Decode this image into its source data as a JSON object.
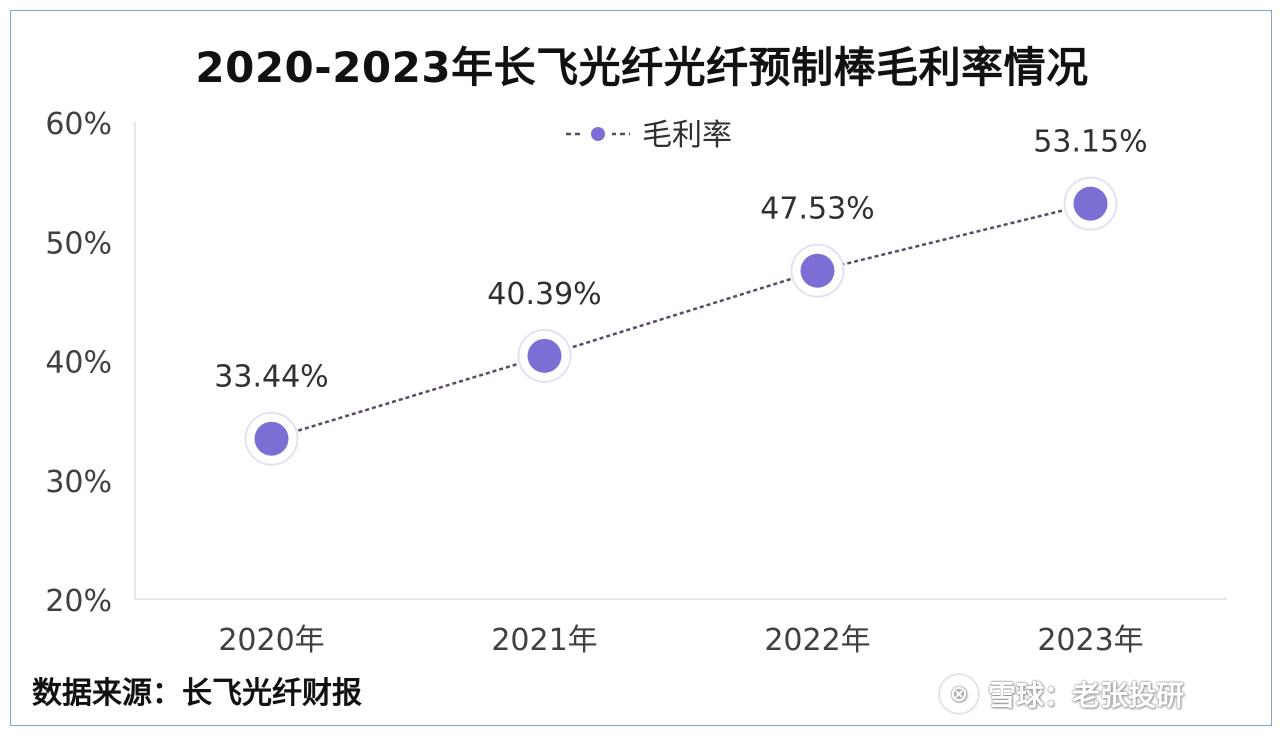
{
  "chart_data": {
    "type": "line",
    "title": "2020-2023年长飞光纤光纤预制棒毛利率情况",
    "categories": [
      "2020年",
      "2021年",
      "2022年",
      "2023年"
    ],
    "series": [
      {
        "name": "毛利率",
        "values": [
          33.44,
          40.39,
          47.53,
          53.15
        ],
        "data_labels": [
          "33.44%",
          "40.39%",
          "47.53%",
          "53.15%"
        ]
      }
    ],
    "ylim": [
      20,
      60
    ],
    "yticks": [
      20,
      30,
      40,
      50,
      60
    ],
    "ytick_labels": [
      "20%",
      "30%",
      "40%",
      "50%",
      "60%"
    ],
    "xlabel": "",
    "ylabel": "",
    "legend_position": "top-center",
    "grid": false,
    "colors": {
      "marker": "#7b6fd6",
      "line": "#5a4a63"
    }
  },
  "source_text": "数据来源：长飞光纤财报",
  "watermark": {
    "icon": "snowball-logo-icon",
    "text": "雪球：老张投研"
  }
}
